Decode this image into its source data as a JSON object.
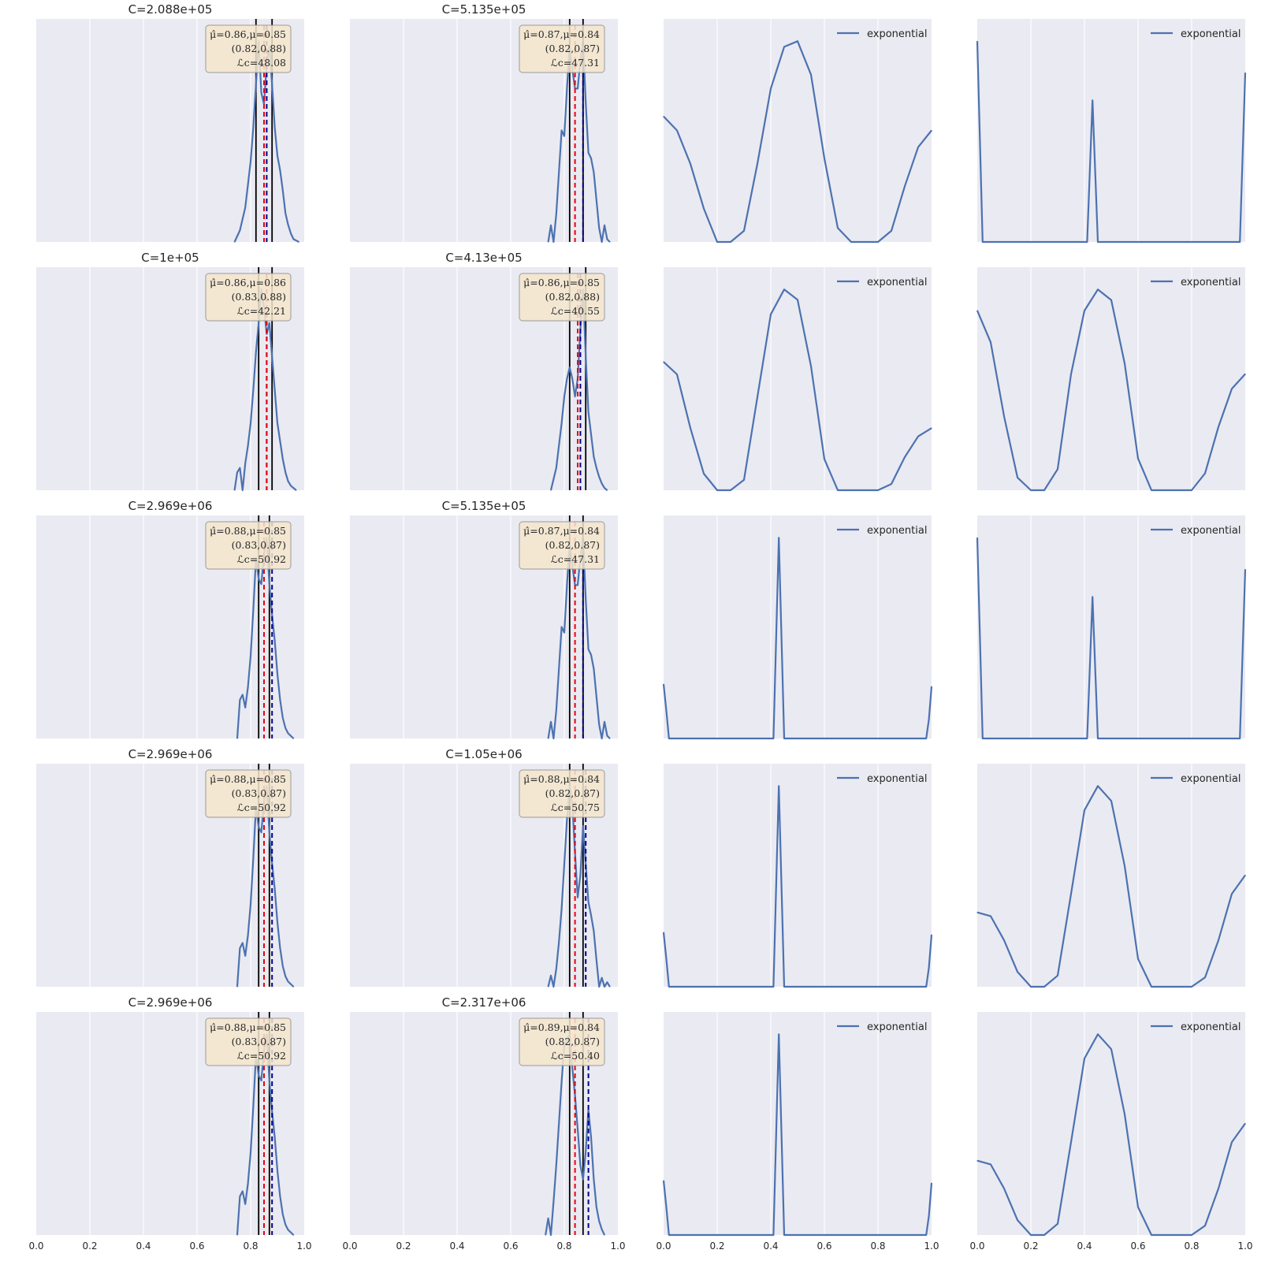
{
  "figure": {
    "x_ticks": [
      "0.0",
      "0.2",
      "0.4",
      "0.6",
      "0.8",
      "1.0"
    ]
  },
  "colors": {
    "background": "#eaeaf2",
    "grid": "#ffffff",
    "curve": "#4c72b0",
    "vline": "#000000",
    "mu_hat": "#00008b",
    "mu": "#e8000b",
    "box_fill": "#f5e6cc",
    "box_edge": "#999999"
  },
  "chart_data": [
    {
      "panel": "r0c0",
      "type": "line",
      "title": "C=2.088e+05",
      "xlim": [
        0,
        1
      ],
      "grid": true,
      "x_ticks": [
        0.2,
        0.4,
        0.6,
        0.8
      ],
      "interval": [
        0.82,
        0.88
      ],
      "mu_hat": 0.86,
      "mu": 0.85,
      "box": {
        "line1": "μ̂=0.86,μ=0.85",
        "line2": "(0.82,0.88)",
        "line3": "ℒc=48.08"
      },
      "x": [
        0.74,
        0.76,
        0.78,
        0.79,
        0.8,
        0.81,
        0.82,
        0.83,
        0.84,
        0.85,
        0.86,
        0.87,
        0.88,
        0.89,
        0.9,
        0.91,
        0.92,
        0.93,
        0.94,
        0.95,
        0.96,
        0.97,
        0.98
      ],
      "y": [
        0.0,
        0.04,
        0.12,
        0.2,
        0.28,
        0.4,
        0.55,
        0.7,
        0.52,
        0.48,
        0.62,
        0.68,
        0.55,
        0.4,
        0.3,
        0.25,
        0.18,
        0.1,
        0.06,
        0.03,
        0.01,
        0.005,
        0.0
      ]
    },
    {
      "panel": "r0c1",
      "type": "line",
      "title": "C=5.135e+05",
      "xlim": [
        0,
        1
      ],
      "grid": true,
      "x_ticks": [
        0.2,
        0.4,
        0.6,
        0.8
      ],
      "interval": [
        0.82,
        0.87
      ],
      "mu_hat": 0.87,
      "mu": 0.84,
      "box": {
        "line1": "μ̂=0.87,μ=0.84",
        "line2": "(0.82,0.87)",
        "line3": "ℒc=47.31"
      },
      "x": [
        0.74,
        0.75,
        0.76,
        0.77,
        0.78,
        0.79,
        0.8,
        0.81,
        0.82,
        0.83,
        0.84,
        0.85,
        0.86,
        0.87,
        0.88,
        0.89,
        0.9,
        0.91,
        0.92,
        0.93,
        0.94,
        0.95,
        0.96,
        0.97
      ],
      "y": [
        0.0,
        0.06,
        0.0,
        0.1,
        0.25,
        0.4,
        0.38,
        0.55,
        0.7,
        0.62,
        0.55,
        0.55,
        0.65,
        0.72,
        0.5,
        0.32,
        0.3,
        0.25,
        0.15,
        0.05,
        0.0,
        0.06,
        0.01,
        0.0
      ]
    },
    {
      "panel": "r0c2",
      "type": "line",
      "title": "",
      "xlim": [
        0,
        1
      ],
      "grid": true,
      "x_ticks": [
        0.2,
        0.4,
        0.6,
        0.8
      ],
      "legend": "exponential",
      "x": [
        0.0,
        0.05,
        0.1,
        0.15,
        0.2,
        0.25,
        0.3,
        0.35,
        0.4,
        0.45,
        0.5,
        0.55,
        0.6,
        0.65,
        0.7,
        0.75,
        0.8,
        0.85,
        0.9,
        0.95,
        1.0
      ],
      "y": [
        0.045,
        0.04,
        0.028,
        0.012,
        0.0,
        0.0,
        0.004,
        0.028,
        0.055,
        0.07,
        0.072,
        0.06,
        0.03,
        0.005,
        0.0,
        0.0,
        0.0,
        0.004,
        0.02,
        0.034,
        0.04
      ]
    },
    {
      "panel": "r0c3",
      "type": "line",
      "title": "",
      "xlim": [
        0,
        1
      ],
      "grid": true,
      "x_ticks": [
        0.2,
        0.4,
        0.6,
        0.8
      ],
      "legend": "exponential",
      "x": [
        0.0,
        0.02,
        0.41,
        0.43,
        0.45,
        0.98,
        1.0
      ],
      "y": [
        0.95,
        0.0,
        0.0,
        0.67,
        0.0,
        0.0,
        0.8
      ]
    },
    {
      "panel": "r1c0",
      "type": "line",
      "title": "C=1e+05",
      "xlim": [
        0,
        1
      ],
      "grid": true,
      "x_ticks": [
        0.2,
        0.4,
        0.6,
        0.8
      ],
      "interval": [
        0.83,
        0.88
      ],
      "mu_hat": 0.86,
      "mu": 0.86,
      "box": {
        "line1": "μ̂=0.86,μ=0.86",
        "line2": "(0.83,0.88)",
        "line3": "ℒc=42.21"
      },
      "x": [
        0.74,
        0.75,
        0.76,
        0.77,
        0.78,
        0.79,
        0.8,
        0.81,
        0.82,
        0.83,
        0.84,
        0.85,
        0.86,
        0.87,
        0.88,
        0.89,
        0.9,
        0.91,
        0.92,
        0.93,
        0.94,
        0.95,
        0.96,
        0.97
      ],
      "y": [
        0.0,
        0.08,
        0.1,
        0.0,
        0.12,
        0.2,
        0.3,
        0.45,
        0.62,
        0.75,
        0.9,
        0.82,
        0.7,
        0.75,
        0.6,
        0.45,
        0.3,
        0.22,
        0.14,
        0.08,
        0.04,
        0.02,
        0.01,
        0.0
      ]
    },
    {
      "panel": "r1c1",
      "type": "line",
      "title": "C=4.13e+05",
      "xlim": [
        0,
        1
      ],
      "grid": true,
      "x_ticks": [
        0.2,
        0.4,
        0.6,
        0.8
      ],
      "interval": [
        0.82,
        0.88
      ],
      "mu_hat": 0.86,
      "mu": 0.85,
      "box": {
        "line1": "μ̂=0.86,μ=0.85",
        "line2": "(0.82,0.88)",
        "line3": "ℒc=40.55"
      },
      "x": [
        0.75,
        0.76,
        0.77,
        0.78,
        0.79,
        0.8,
        0.81,
        0.82,
        0.83,
        0.84,
        0.85,
        0.86,
        0.87,
        0.88,
        0.89,
        0.9,
        0.91,
        0.92,
        0.93,
        0.94,
        0.95,
        0.96
      ],
      "y": [
        0.0,
        0.05,
        0.1,
        0.2,
        0.3,
        0.42,
        0.5,
        0.55,
        0.5,
        0.42,
        0.5,
        0.72,
        0.9,
        0.6,
        0.35,
        0.25,
        0.15,
        0.1,
        0.06,
        0.03,
        0.01,
        0.0
      ]
    },
    {
      "panel": "r1c2",
      "type": "line",
      "title": "",
      "xlim": [
        0,
        1
      ],
      "grid": true,
      "x_ticks": [
        0.2,
        0.4,
        0.6,
        0.8
      ],
      "legend": "exponential",
      "x": [
        0.0,
        0.05,
        0.1,
        0.15,
        0.2,
        0.25,
        0.3,
        0.35,
        0.4,
        0.45,
        0.5,
        0.55,
        0.6,
        0.65,
        0.7,
        0.75,
        0.8,
        0.85,
        0.9,
        0.95,
        1.0
      ],
      "y": [
        0.062,
        0.056,
        0.03,
        0.008,
        0.0,
        0.0,
        0.005,
        0.045,
        0.085,
        0.097,
        0.092,
        0.06,
        0.015,
        0.0,
        0.0,
        0.0,
        0.0,
        0.003,
        0.016,
        0.026,
        0.03
      ]
    },
    {
      "panel": "r1c3",
      "type": "line",
      "title": "",
      "xlim": [
        0,
        1
      ],
      "grid": true,
      "x_ticks": [
        0.2,
        0.4,
        0.6,
        0.8
      ],
      "legend": "exponential",
      "x": [
        0.0,
        0.05,
        0.1,
        0.15,
        0.2,
        0.25,
        0.3,
        0.35,
        0.4,
        0.45,
        0.5,
        0.55,
        0.6,
        0.65,
        0.7,
        0.75,
        0.8,
        0.85,
        0.9,
        0.95,
        1.0
      ],
      "y": [
        0.085,
        0.07,
        0.035,
        0.006,
        0.0,
        0.0,
        0.01,
        0.055,
        0.085,
        0.095,
        0.09,
        0.06,
        0.015,
        0.0,
        0.0,
        0.0,
        0.0,
        0.008,
        0.03,
        0.048,
        0.055
      ]
    },
    {
      "panel": "r2c0",
      "type": "line",
      "title": "C=2.969e+06",
      "xlim": [
        0,
        1
      ],
      "grid": true,
      "x_ticks": [
        0.2,
        0.4,
        0.6,
        0.8
      ],
      "interval": [
        0.83,
        0.87
      ],
      "mu_hat": 0.88,
      "mu": 0.85,
      "box": {
        "line1": "μ̂=0.88,μ=0.85",
        "line2": "(0.83,0.87)",
        "line3": "ℒc=50.92"
      },
      "x": [
        0.75,
        0.76,
        0.77,
        0.78,
        0.79,
        0.8,
        0.81,
        0.82,
        0.83,
        0.84,
        0.85,
        0.86,
        0.87,
        0.88,
        0.89,
        0.9,
        0.91,
        0.92,
        0.93,
        0.94,
        0.95,
        0.96
      ],
      "y": [
        0.0,
        0.15,
        0.17,
        0.12,
        0.2,
        0.32,
        0.5,
        0.7,
        0.62,
        0.6,
        0.72,
        0.78,
        0.6,
        0.48,
        0.38,
        0.25,
        0.15,
        0.08,
        0.04,
        0.02,
        0.01,
        0.0
      ]
    },
    {
      "panel": "r2c1",
      "type": "line",
      "title": "C=5.135e+05",
      "xlim": [
        0,
        1
      ],
      "grid": true,
      "x_ticks": [
        0.2,
        0.4,
        0.6,
        0.8
      ],
      "interval": [
        0.82,
        0.87
      ],
      "mu_hat": 0.87,
      "mu": 0.84,
      "box": {
        "line1": "μ̂=0.87,μ=0.84",
        "line2": "(0.82,0.87)",
        "line3": "ℒc=47.31"
      },
      "x": [
        0.74,
        0.75,
        0.76,
        0.77,
        0.78,
        0.79,
        0.8,
        0.81,
        0.82,
        0.83,
        0.84,
        0.85,
        0.86,
        0.87,
        0.88,
        0.89,
        0.9,
        0.91,
        0.92,
        0.93,
        0.94,
        0.95,
        0.96,
        0.97
      ],
      "y": [
        0.0,
        0.06,
        0.0,
        0.1,
        0.25,
        0.4,
        0.38,
        0.55,
        0.7,
        0.62,
        0.55,
        0.55,
        0.65,
        0.72,
        0.5,
        0.32,
        0.3,
        0.25,
        0.15,
        0.05,
        0.0,
        0.06,
        0.01,
        0.0
      ]
    },
    {
      "panel": "r2c2",
      "type": "line",
      "title": "",
      "xlim": [
        0,
        1
      ],
      "grid": true,
      "x_ticks": [
        0.2,
        0.4,
        0.6,
        0.8
      ],
      "legend": "exponential",
      "x": [
        0.0,
        0.01,
        0.02,
        0.41,
        0.43,
        0.45,
        0.98,
        0.99,
        1.0
      ],
      "y": [
        0.23,
        0.12,
        0.0,
        0.0,
        0.85,
        0.0,
        0.0,
        0.08,
        0.22
      ]
    },
    {
      "panel": "r2c3",
      "type": "line",
      "title": "",
      "xlim": [
        0,
        1
      ],
      "grid": true,
      "x_ticks": [
        0.2,
        0.4,
        0.6,
        0.8
      ],
      "legend": "exponential",
      "x": [
        0.0,
        0.02,
        0.41,
        0.43,
        0.45,
        0.98,
        1.0
      ],
      "y": [
        0.95,
        0.0,
        0.0,
        0.67,
        0.0,
        0.0,
        0.8
      ]
    },
    {
      "panel": "r3c0",
      "type": "line",
      "title": "C=2.969e+06",
      "xlim": [
        0,
        1
      ],
      "grid": true,
      "x_ticks": [
        0.2,
        0.4,
        0.6,
        0.8
      ],
      "interval": [
        0.83,
        0.87
      ],
      "mu_hat": 0.88,
      "mu": 0.85,
      "box": {
        "line1": "μ̂=0.88,μ=0.85",
        "line2": "(0.83,0.87)",
        "line3": "ℒc=50.92"
      },
      "x": [
        0.75,
        0.76,
        0.77,
        0.78,
        0.79,
        0.8,
        0.81,
        0.82,
        0.83,
        0.84,
        0.85,
        0.86,
        0.87,
        0.88,
        0.89,
        0.9,
        0.91,
        0.92,
        0.93,
        0.94,
        0.95,
        0.96
      ],
      "y": [
        0.0,
        0.15,
        0.17,
        0.12,
        0.2,
        0.32,
        0.5,
        0.7,
        0.62,
        0.6,
        0.72,
        0.78,
        0.6,
        0.48,
        0.38,
        0.25,
        0.15,
        0.08,
        0.04,
        0.02,
        0.01,
        0.0
      ]
    },
    {
      "panel": "r3c1",
      "type": "line",
      "title": "C=1.05e+06",
      "xlim": [
        0,
        1
      ],
      "grid": true,
      "x_ticks": [
        0.2,
        0.4,
        0.6,
        0.8
      ],
      "interval": [
        0.82,
        0.87
      ],
      "mu_hat": 0.88,
      "mu": 0.84,
      "box": {
        "line1": "μ̂=0.88,μ=0.84",
        "line2": "(0.82,0.87)",
        "line3": "ℒc=50.75"
      },
      "x": [
        0.74,
        0.75,
        0.76,
        0.77,
        0.78,
        0.79,
        0.8,
        0.81,
        0.82,
        0.83,
        0.84,
        0.85,
        0.86,
        0.87,
        0.88,
        0.89,
        0.9,
        0.91,
        0.92,
        0.93,
        0.94,
        0.95,
        0.96,
        0.97
      ],
      "y": [
        0.0,
        0.05,
        0.0,
        0.08,
        0.2,
        0.35,
        0.55,
        0.75,
        0.9,
        0.82,
        0.6,
        0.4,
        0.5,
        0.72,
        0.55,
        0.38,
        0.32,
        0.25,
        0.12,
        0.0,
        0.04,
        0.0,
        0.02,
        0.0
      ]
    },
    {
      "panel": "r3c2",
      "type": "line",
      "title": "",
      "xlim": [
        0,
        1
      ],
      "grid": true,
      "x_ticks": [
        0.2,
        0.4,
        0.6,
        0.8
      ],
      "legend": "exponential",
      "x": [
        0.0,
        0.01,
        0.02,
        0.41,
        0.43,
        0.45,
        0.98,
        0.99,
        1.0
      ],
      "y": [
        0.23,
        0.12,
        0.0,
        0.0,
        0.85,
        0.0,
        0.0,
        0.08,
        0.22
      ]
    },
    {
      "panel": "r3c3",
      "type": "line",
      "title": "",
      "xlim": [
        0,
        1
      ],
      "grid": true,
      "x_ticks": [
        0.2,
        0.4,
        0.6,
        0.8
      ],
      "legend": "exponential",
      "x": [
        0.0,
        0.05,
        0.1,
        0.15,
        0.2,
        0.25,
        0.3,
        0.35,
        0.4,
        0.45,
        0.5,
        0.55,
        0.6,
        0.65,
        0.7,
        0.75,
        0.8,
        0.85,
        0.9,
        0.95,
        1.0
      ],
      "y": [
        0.04,
        0.038,
        0.025,
        0.008,
        0.0,
        0.0,
        0.006,
        0.05,
        0.095,
        0.108,
        0.1,
        0.065,
        0.015,
        0.0,
        0.0,
        0.0,
        0.0,
        0.005,
        0.025,
        0.05,
        0.06
      ]
    },
    {
      "panel": "r4c0",
      "type": "line",
      "title": "C=2.969e+06",
      "xlim": [
        0,
        1
      ],
      "grid": true,
      "x_ticks": [
        0.2,
        0.4,
        0.6,
        0.8
      ],
      "interval": [
        0.83,
        0.87
      ],
      "mu_hat": 0.88,
      "mu": 0.85,
      "box": {
        "line1": "μ̂=0.88,μ=0.85",
        "line2": "(0.83,0.87)",
        "line3": "ℒc=50.92"
      },
      "x": [
        0.75,
        0.76,
        0.77,
        0.78,
        0.79,
        0.8,
        0.81,
        0.82,
        0.83,
        0.84,
        0.85,
        0.86,
        0.87,
        0.88,
        0.89,
        0.9,
        0.91,
        0.92,
        0.93,
        0.94,
        0.95,
        0.96
      ],
      "y": [
        0.0,
        0.15,
        0.17,
        0.12,
        0.2,
        0.32,
        0.5,
        0.7,
        0.62,
        0.6,
        0.72,
        0.78,
        0.6,
        0.48,
        0.38,
        0.25,
        0.15,
        0.08,
        0.04,
        0.02,
        0.01,
        0.0
      ]
    },
    {
      "panel": "r4c1",
      "type": "line",
      "title": "C=2.317e+06",
      "xlim": [
        0,
        1
      ],
      "grid": true,
      "x_ticks": [
        0.2,
        0.4,
        0.6,
        0.8
      ],
      "interval": [
        0.82,
        0.87
      ],
      "mu_hat": 0.89,
      "mu": 0.84,
      "box": {
        "line1": "μ̂=0.89,μ=0.84",
        "line2": "(0.82,0.87)",
        "line3": "ℒc=50.40"
      },
      "x": [
        0.73,
        0.74,
        0.75,
        0.76,
        0.77,
        0.78,
        0.79,
        0.8,
        0.81,
        0.82,
        0.83,
        0.84,
        0.85,
        0.86,
        0.87,
        0.88,
        0.89,
        0.9,
        0.91,
        0.92,
        0.93,
        0.94,
        0.95
      ],
      "y": [
        0.0,
        0.06,
        0.0,
        0.12,
        0.25,
        0.4,
        0.55,
        0.68,
        0.7,
        0.72,
        0.6,
        0.5,
        0.38,
        0.25,
        0.2,
        0.3,
        0.45,
        0.35,
        0.2,
        0.1,
        0.05,
        0.02,
        0.0
      ]
    },
    {
      "panel": "r4c2",
      "type": "line",
      "title": "",
      "xlim": [
        0,
        1
      ],
      "grid": true,
      "x_ticks": [
        0.0,
        0.2,
        0.4,
        0.6,
        0.8,
        1.0
      ],
      "legend": "exponential",
      "x": [
        0.0,
        0.01,
        0.02,
        0.41,
        0.43,
        0.45,
        0.98,
        0.99,
        1.0
      ],
      "y": [
        0.23,
        0.12,
        0.0,
        0.0,
        0.85,
        0.0,
        0.0,
        0.08,
        0.22
      ]
    },
    {
      "panel": "r4c3",
      "type": "line",
      "title": "",
      "xlim": [
        0,
        1
      ],
      "grid": true,
      "x_ticks": [
        0.0,
        0.2,
        0.4,
        0.6,
        0.8,
        1.0
      ],
      "legend": "exponential",
      "x": [
        0.0,
        0.05,
        0.1,
        0.15,
        0.2,
        0.25,
        0.3,
        0.35,
        0.4,
        0.45,
        0.5,
        0.55,
        0.6,
        0.65,
        0.7,
        0.75,
        0.8,
        0.85,
        0.9,
        0.95,
        1.0
      ],
      "y": [
        0.04,
        0.038,
        0.025,
        0.008,
        0.0,
        0.0,
        0.006,
        0.05,
        0.095,
        0.108,
        0.1,
        0.065,
        0.015,
        0.0,
        0.0,
        0.0,
        0.0,
        0.005,
        0.025,
        0.05,
        0.06
      ]
    }
  ]
}
